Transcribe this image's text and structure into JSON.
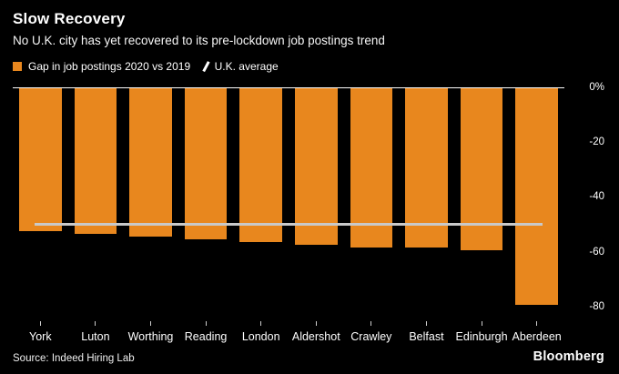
{
  "header": {
    "title": "Slow Recovery",
    "subtitle": "No U.K. city has yet recovered to its pre-lockdown job postings trend"
  },
  "legend": {
    "bar_label": "Gap in job postings 2020 vs 2019",
    "avg_label": "U.K. average"
  },
  "chart_data": {
    "type": "bar",
    "title": "Slow Recovery",
    "categories": [
      "York",
      "Luton",
      "Worthing",
      "Reading",
      "London",
      "Aldershot",
      "Crawley",
      "Belfast",
      "Edinburgh",
      "Aberdeen"
    ],
    "values": [
      -52,
      -53,
      -54,
      -55,
      -56,
      -57,
      -58,
      -58,
      -59,
      -79
    ],
    "uk_average": -49,
    "ylim": [
      0,
      -85
    ],
    "y_ticks": [
      {
        "label": "0%",
        "value": 0
      },
      {
        "label": "-20",
        "value": -20
      },
      {
        "label": "-40",
        "value": -40
      },
      {
        "label": "-60",
        "value": -60
      },
      {
        "label": "-80",
        "value": -80
      }
    ],
    "bar_color": "#E8871E",
    "avg_line_color": "#C9C9C9",
    "legend_position": "top",
    "grid": false
  },
  "footer": {
    "source": "Source: Indeed Hiring Lab",
    "brand": "Bloomberg"
  }
}
